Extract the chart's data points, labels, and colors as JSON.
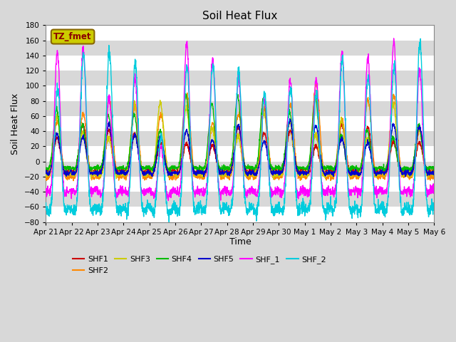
{
  "title": "Soil Heat Flux",
  "ylabel": "Soil Heat Flux",
  "xlabel": "Time",
  "ylim": [
    -80,
    180
  ],
  "yticks": [
    -80,
    -60,
    -40,
    -20,
    0,
    20,
    40,
    60,
    80,
    100,
    120,
    140,
    160,
    180
  ],
  "background_color": "#D8D8D8",
  "tz_label": "TZ_fmet",
  "tz_box_facecolor": "#CCCC00",
  "tz_box_edgecolor": "#886600",
  "tz_text_color": "#8B0000",
  "line_colors": {
    "SHF1": "#CC0000",
    "SHF2": "#FF8800",
    "SHF3": "#CCCC00",
    "SHF4": "#00BB00",
    "SHF5": "#0000CC",
    "SHF_1": "#FF00FF",
    "SHF_2": "#00CCDD"
  },
  "x_tick_labels": [
    "Apr 21",
    "Apr 22",
    "Apr 23",
    "Apr 24",
    "Apr 25",
    "Apr 26",
    "Apr 27",
    "Apr 28",
    "Apr 29",
    "Apr 30",
    "May 1",
    "May 2",
    "May 3",
    "May 4",
    "May 5",
    "May 6"
  ],
  "n_days": 15,
  "pts_per_day": 144
}
